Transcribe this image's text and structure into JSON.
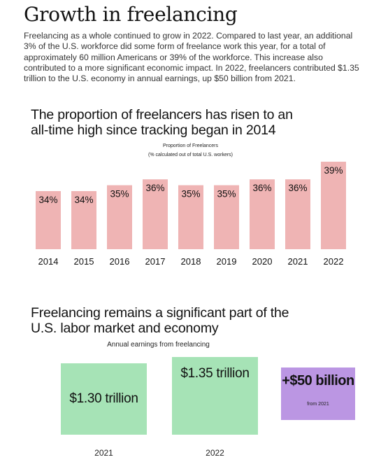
{
  "page": {
    "title": "Growth in freelancing",
    "intro": "Freelancing as a whole continued to grow in 2022. Compared to last year, an additional 3% of the U.S. workforce did some form of freelance work this year, for a total of approximately 60 million Americans or 39% of the workforce. This increase also contributed to a more significant economic impact. In 2022, freelancers contributed $1.35 trillion to the U.S. economy in annual earnings, up $50 billion from 2021."
  },
  "section1": {
    "heading": "The proportion of freelancers has risen to an all-time high since tracking began in 2014"
  },
  "section2": {
    "heading": "Freelancing remains a significant part of the U.S. labor market and economy"
  },
  "colors": {
    "bar": "#efb4b4",
    "earnings_box": "#a6e3b6",
    "diff_box": "#bb96e3"
  },
  "chart_data": [
    {
      "type": "bar",
      "title": "Proportion of Freelancers",
      "subtitle": "(% calculated out of total U.S. workers)",
      "categories": [
        "2014",
        "2015",
        "2016",
        "2017",
        "2018",
        "2019",
        "2020",
        "2021",
        "2022"
      ],
      "values": [
        34,
        34,
        35,
        36,
        35,
        35,
        36,
        36,
        39
      ],
      "data_labels": [
        "34%",
        "34%",
        "35%",
        "36%",
        "35%",
        "35%",
        "36%",
        "36%",
        "39%"
      ],
      "unit": "%",
      "grid": false,
      "legend": "none"
    },
    {
      "type": "bar",
      "title": "Annual earnings from freelancing",
      "categories": [
        "2021",
        "2022"
      ],
      "values": [
        1.3,
        1.35
      ],
      "data_labels": [
        "$1.30 trillion",
        "$1.35 trillion"
      ],
      "unit": "trillion USD",
      "annotation": {
        "value": "+$50 billion",
        "note": "from 2021"
      },
      "grid": false,
      "legend": "none"
    }
  ]
}
